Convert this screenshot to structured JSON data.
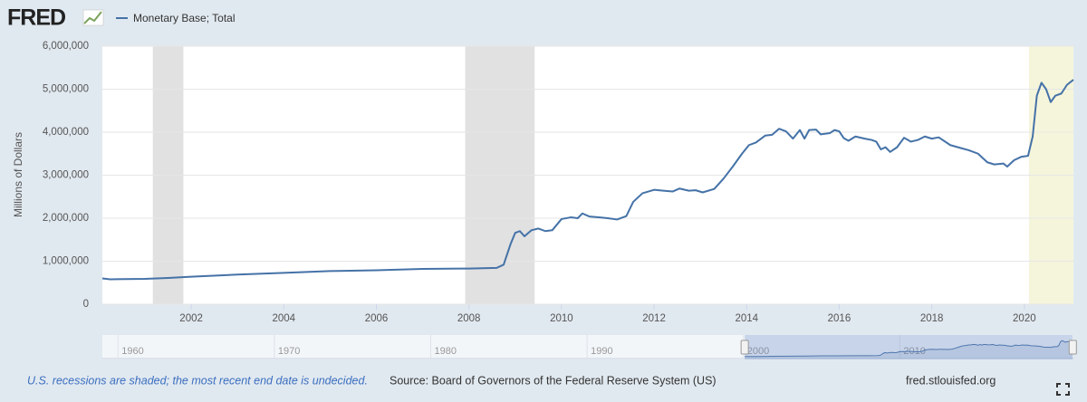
{
  "logo": "FRED",
  "chart_data": {
    "type": "line",
    "y_axis_label": "Millions of Dollars",
    "grid": true,
    "xlim": [
      2000.08,
      2021.06
    ],
    "xticks": [
      2002,
      2004,
      2006,
      2008,
      2010,
      2012,
      2014,
      2016,
      2018,
      2020
    ],
    "ylim": [
      0,
      6000000
    ],
    "yticks": [
      0,
      {
        "value": 1000000,
        "label": "1,000,000"
      },
      {
        "value": 2000000,
        "label": "2,000,000"
      },
      {
        "value": 3000000,
        "label": "3,000,000"
      },
      {
        "value": 4000000,
        "label": "4,000,000"
      },
      {
        "value": 5000000,
        "label": "5,000,000"
      },
      {
        "value": 6000000,
        "label": "6,000,000"
      }
    ],
    "recessions": {
      "color": "#e1e1e1",
      "ranges": [
        [
          2001.17,
          2001.83
        ],
        [
          2007.92,
          2009.42
        ]
      ]
    },
    "undecided_recession": {
      "color": "#f5f5dc",
      "range": [
        2020.1,
        2021.06
      ]
    },
    "x": [
      2000.08,
      2000.25,
      2001.0,
      2001.5,
      2002.0,
      2003.0,
      2004.0,
      2005.0,
      2006.0,
      2007.0,
      2008.0,
      2008.6,
      2008.75,
      2008.9,
      2009.0,
      2009.1,
      2009.2,
      2009.35,
      2009.5,
      2009.65,
      2009.8,
      2010.0,
      2010.2,
      2010.35,
      2010.45,
      2010.6,
      2010.8,
      2011.0,
      2011.2,
      2011.4,
      2011.55,
      2011.75,
      2012.0,
      2012.2,
      2012.4,
      2012.55,
      2012.75,
      2012.9,
      2013.05,
      2013.3,
      2013.5,
      2013.7,
      2013.9,
      2014.05,
      2014.2,
      2014.4,
      2014.55,
      2014.7,
      2014.85,
      2015.0,
      2015.15,
      2015.25,
      2015.35,
      2015.5,
      2015.6,
      2015.8,
      2015.9,
      2016.0,
      2016.1,
      2016.2,
      2016.35,
      2016.55,
      2016.7,
      2016.8,
      2016.9,
      2017.0,
      2017.1,
      2017.25,
      2017.4,
      2017.55,
      2017.7,
      2017.85,
      2018.0,
      2018.15,
      2018.4,
      2018.6,
      2018.8,
      2019.0,
      2019.2,
      2019.35,
      2019.55,
      2019.63,
      2019.78,
      2019.94,
      2020.08,
      2020.18,
      2020.27,
      2020.37,
      2020.47,
      2020.57,
      2020.67,
      2020.8,
      2020.92,
      2021.06
    ],
    "series": [
      {
        "name": "Monetary Base; Total",
        "color": "#4572a7",
        "values": [
          600000,
          580000,
          590000,
          610000,
          640000,
          690000,
          730000,
          770000,
          790000,
          820000,
          830000,
          845000,
          920000,
          1400000,
          1660000,
          1700000,
          1580000,
          1720000,
          1760000,
          1700000,
          1720000,
          1980000,
          2020000,
          2000000,
          2110000,
          2040000,
          2020000,
          2000000,
          1970000,
          2050000,
          2380000,
          2580000,
          2660000,
          2640000,
          2620000,
          2690000,
          2640000,
          2650000,
          2600000,
          2680000,
          2920000,
          3200000,
          3500000,
          3700000,
          3760000,
          3920000,
          3940000,
          4080000,
          4020000,
          3850000,
          4050000,
          3850000,
          4050000,
          4060000,
          3950000,
          3980000,
          4050000,
          4020000,
          3860000,
          3800000,
          3900000,
          3850000,
          3820000,
          3780000,
          3600000,
          3650000,
          3540000,
          3650000,
          3870000,
          3780000,
          3820000,
          3900000,
          3850000,
          3880000,
          3700000,
          3640000,
          3580000,
          3500000,
          3300000,
          3250000,
          3270000,
          3200000,
          3350000,
          3430000,
          3450000,
          3900000,
          4850000,
          5150000,
          5000000,
          4700000,
          4850000,
          4900000,
          5100000,
          5220000
        ]
      }
    ],
    "navigator": {
      "xlim": [
        1959,
        2021.1
      ],
      "xticks": [
        1960,
        1970,
        1980,
        1990,
        2000,
        2010
      ]
    }
  },
  "footer": {
    "recession_note": "U.S. recessions are shaded; the most recent end date is undecided.",
    "source": "Source: Board of Governors of the Federal Reserve System (US)",
    "site": "fred.stlouisfed.org"
  }
}
